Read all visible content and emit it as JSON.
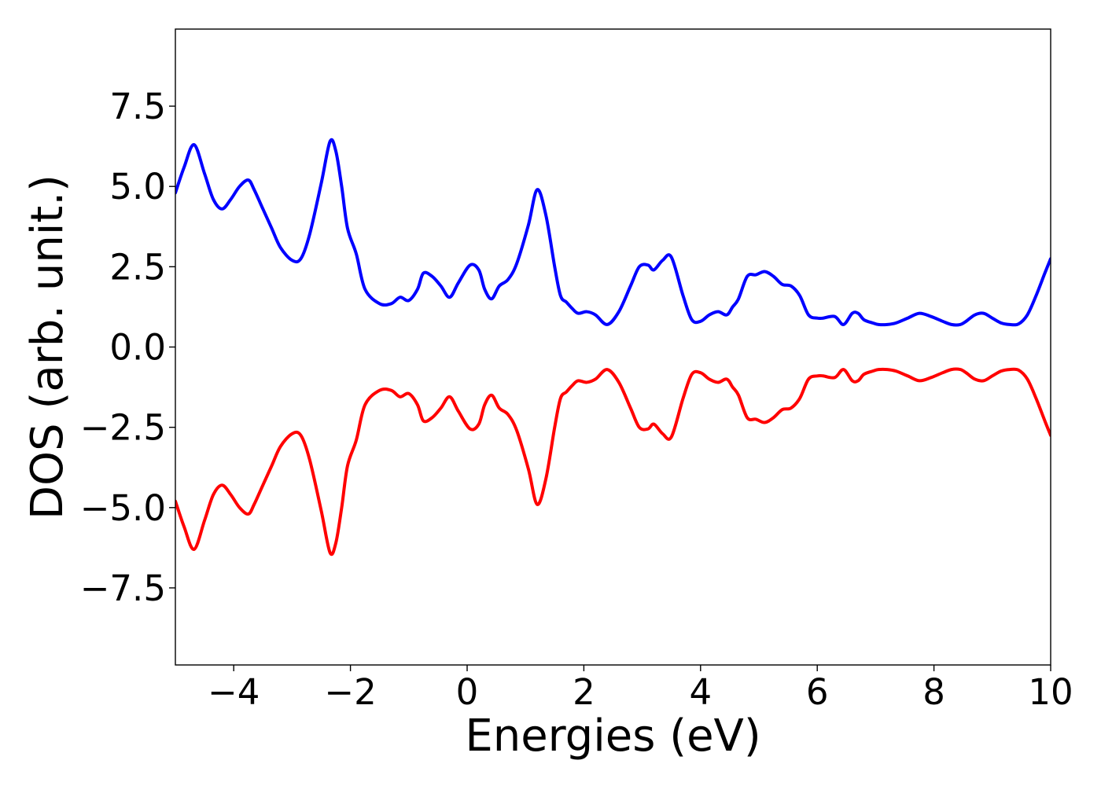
{
  "chart_data": {
    "type": "line",
    "title": "",
    "xlabel": "Energies (eV)",
    "ylabel": "DOS (arb. unit.)",
    "xlim": [
      -5,
      10
    ],
    "ylim": [
      -9.9,
      9.9
    ],
    "xticks": [
      -4,
      -2,
      0,
      2,
      4,
      6,
      8,
      10
    ],
    "xtick_labels": [
      "−4",
      "−2",
      "0",
      "2",
      "4",
      "6",
      "8",
      "10"
    ],
    "yticks": [
      -7.5,
      -5.0,
      -2.5,
      0.0,
      2.5,
      5.0,
      7.5
    ],
    "ytick_labels": [
      "−7.5",
      "−5.0",
      "−2.5",
      "0.0",
      "2.5",
      "5.0",
      "7.5"
    ],
    "grid": false,
    "legend": "none",
    "series": [
      {
        "color": "#0000ff",
        "x": [
          -5.0,
          -4.85,
          -4.68,
          -4.5,
          -4.35,
          -4.2,
          -4.05,
          -3.9,
          -3.75,
          -3.65,
          -3.5,
          -3.35,
          -3.2,
          -3.0,
          -2.85,
          -2.7,
          -2.5,
          -2.35,
          -2.25,
          -2.15,
          -2.05,
          -1.9,
          -1.75,
          -1.5,
          -1.3,
          -1.15,
          -1.0,
          -0.85,
          -0.75,
          -0.6,
          -0.45,
          -0.3,
          -0.15,
          0.05,
          0.2,
          0.3,
          0.42,
          0.55,
          0.7,
          0.85,
          1.05,
          1.2,
          1.35,
          1.5,
          1.6,
          1.7,
          1.8,
          1.9,
          2.05,
          2.2,
          2.4,
          2.6,
          2.8,
          2.95,
          3.1,
          3.2,
          3.35,
          3.5,
          3.7,
          3.85,
          4.0,
          4.15,
          4.3,
          4.45,
          4.55,
          4.65,
          4.8,
          4.95,
          5.1,
          5.25,
          5.4,
          5.55,
          5.7,
          5.85,
          6.0,
          6.1,
          6.3,
          6.45,
          6.6,
          6.7,
          6.8,
          6.95,
          7.05,
          7.2,
          7.35,
          7.55,
          7.75,
          7.95,
          8.15,
          8.3,
          8.45,
          8.55,
          8.7,
          8.85,
          9.0,
          9.15,
          9.3,
          9.45,
          9.6,
          9.75,
          9.9,
          10.0
        ],
        "values": [
          4.8,
          5.6,
          6.3,
          5.4,
          4.6,
          4.3,
          4.6,
          5.0,
          5.2,
          4.9,
          4.3,
          3.7,
          3.1,
          2.7,
          2.75,
          3.5,
          5.1,
          6.4,
          6.1,
          5.0,
          3.7,
          2.9,
          1.8,
          1.35,
          1.35,
          1.55,
          1.45,
          1.8,
          2.3,
          2.2,
          1.9,
          1.55,
          2.0,
          2.55,
          2.4,
          1.8,
          1.5,
          1.9,
          2.1,
          2.6,
          3.8,
          4.9,
          4.1,
          2.5,
          1.6,
          1.4,
          1.2,
          1.05,
          1.1,
          1.0,
          0.7,
          1.1,
          1.9,
          2.5,
          2.55,
          2.4,
          2.7,
          2.8,
          1.6,
          0.85,
          0.8,
          1.0,
          1.1,
          1.0,
          1.25,
          1.5,
          2.2,
          2.25,
          2.35,
          2.2,
          1.95,
          1.9,
          1.6,
          1.0,
          0.9,
          0.9,
          0.95,
          0.7,
          1.05,
          1.05,
          0.85,
          0.75,
          0.7,
          0.7,
          0.75,
          0.9,
          1.05,
          0.95,
          0.8,
          0.7,
          0.7,
          0.8,
          1.0,
          1.05,
          0.9,
          0.75,
          0.7,
          0.72,
          1.0,
          1.6,
          2.3,
          2.75
        ]
      },
      {
        "color": "#ff0000",
        "x": [
          -5.0,
          -4.85,
          -4.68,
          -4.5,
          -4.35,
          -4.2,
          -4.05,
          -3.9,
          -3.75,
          -3.65,
          -3.5,
          -3.35,
          -3.2,
          -3.0,
          -2.85,
          -2.7,
          -2.5,
          -2.35,
          -2.25,
          -2.15,
          -2.05,
          -1.9,
          -1.75,
          -1.5,
          -1.3,
          -1.15,
          -1.0,
          -0.85,
          -0.75,
          -0.6,
          -0.45,
          -0.3,
          -0.15,
          0.05,
          0.2,
          0.3,
          0.42,
          0.55,
          0.7,
          0.85,
          1.05,
          1.2,
          1.35,
          1.5,
          1.6,
          1.7,
          1.8,
          1.9,
          2.05,
          2.2,
          2.4,
          2.6,
          2.8,
          2.95,
          3.1,
          3.2,
          3.35,
          3.5,
          3.7,
          3.85,
          4.0,
          4.15,
          4.3,
          4.45,
          4.55,
          4.65,
          4.8,
          4.95,
          5.1,
          5.25,
          5.4,
          5.55,
          5.7,
          5.85,
          6.0,
          6.1,
          6.3,
          6.45,
          6.6,
          6.7,
          6.8,
          6.95,
          7.05,
          7.2,
          7.35,
          7.55,
          7.75,
          7.95,
          8.15,
          8.3,
          8.45,
          8.55,
          8.7,
          8.85,
          9.0,
          9.15,
          9.3,
          9.45,
          9.6,
          9.75,
          9.9,
          10.0
        ],
        "values": [
          -4.8,
          -5.6,
          -6.3,
          -5.4,
          -4.6,
          -4.3,
          -4.6,
          -5.0,
          -5.2,
          -4.9,
          -4.3,
          -3.7,
          -3.1,
          -2.7,
          -2.75,
          -3.5,
          -5.1,
          -6.4,
          -6.1,
          -5.0,
          -3.7,
          -2.9,
          -1.8,
          -1.35,
          -1.35,
          -1.55,
          -1.45,
          -1.8,
          -2.3,
          -2.2,
          -1.9,
          -1.55,
          -2.0,
          -2.55,
          -2.4,
          -1.8,
          -1.5,
          -1.9,
          -2.1,
          -2.6,
          -3.8,
          -4.9,
          -4.1,
          -2.5,
          -1.6,
          -1.4,
          -1.2,
          -1.05,
          -1.1,
          -1.0,
          -0.7,
          -1.1,
          -1.9,
          -2.5,
          -2.55,
          -2.4,
          -2.7,
          -2.8,
          -1.6,
          -0.85,
          -0.8,
          -1.0,
          -1.1,
          -1.0,
          -1.25,
          -1.5,
          -2.2,
          -2.25,
          -2.35,
          -2.2,
          -1.95,
          -1.9,
          -1.6,
          -1.0,
          -0.9,
          -0.9,
          -0.95,
          -0.7,
          -1.05,
          -1.05,
          -0.85,
          -0.75,
          -0.7,
          -0.7,
          -0.75,
          -0.9,
          -1.05,
          -0.95,
          -0.8,
          -0.7,
          -0.7,
          -0.8,
          -1.0,
          -1.05,
          -0.9,
          -0.75,
          -0.7,
          -0.72,
          -1.0,
          -1.6,
          -2.3,
          -2.75
        ]
      }
    ]
  }
}
